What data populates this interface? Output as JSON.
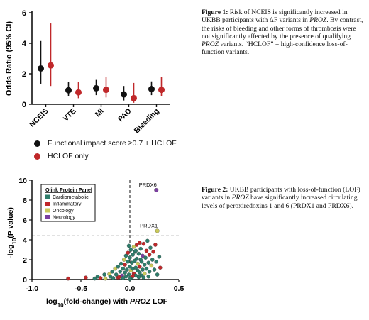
{
  "figure1": {
    "chart_data": {
      "type": "scatter",
      "subtype": "odds-ratio forest plot",
      "ylabel": "Odds Ratio (95% CI)",
      "ylim": [
        0,
        6
      ],
      "yticks": [
        0,
        2,
        4,
        6
      ],
      "reference_line": 1,
      "categories": [
        "NCEIS",
        "VTE",
        "MI",
        "PAD",
        "Bleeding"
      ],
      "series": [
        {
          "name": "Functional impact score ≥0.7 + HCLOF",
          "color": "#111111",
          "or": [
            2.35,
            0.92,
            1.05,
            0.65,
            1.0
          ],
          "ci_low": [
            1.35,
            0.55,
            0.6,
            0.25,
            0.6
          ],
          "ci_high": [
            4.15,
            1.45,
            1.6,
            1.2,
            1.5
          ]
        },
        {
          "name": "HCLOF only",
          "color": "#c0282a",
          "or": [
            2.55,
            0.78,
            0.95,
            0.4,
            0.95
          ],
          "ci_low": [
            1.2,
            0.4,
            0.45,
            0.1,
            0.55
          ],
          "ci_high": [
            5.3,
            1.45,
            1.8,
            1.4,
            1.8
          ]
        }
      ]
    },
    "legend": [
      {
        "label": "Functional impact score ≥0.7 + HCLOF",
        "color": "#111111"
      },
      {
        "label": "HCLOF only",
        "color": "#c0282a"
      }
    ]
  },
  "figure2": {
    "chart_data": {
      "type": "scatter",
      "subtype": "volcano",
      "xlabel": "log10(fold-change) with PROZ LOF",
      "ylabel": "-log10(P value)",
      "xlim": [
        -1.0,
        0.5
      ],
      "ylim": [
        0,
        10
      ],
      "xticks": [
        "-1.0",
        "-0.5",
        "0.0",
        "0.5"
      ],
      "yticks": [
        "0",
        "2",
        "4",
        "6",
        "8",
        "10"
      ],
      "threshold_y": 4.4,
      "threshold_x": 0,
      "legend_title": "Olink Protein Panel",
      "series": [
        {
          "name": "Cardiometabolic",
          "color": "#2e7d6b"
        },
        {
          "name": "Inflammatory",
          "color": "#c0282a"
        },
        {
          "name": "Oncology",
          "color": "#c9c95a"
        },
        {
          "name": "Neurology",
          "color": "#7b3fa0"
        }
      ],
      "labeled_points": [
        {
          "label": "PRDX6",
          "x": 0.27,
          "y": 9.0,
          "panel": "Neurology"
        },
        {
          "label": "PRDX1",
          "x": 0.28,
          "y": 4.9,
          "panel": "Oncology"
        }
      ],
      "points": [
        [
          -0.63,
          0.1,
          1
        ],
        [
          -0.45,
          0.2,
          1
        ],
        [
          -0.36,
          0.1,
          0
        ],
        [
          -0.33,
          0.3,
          0
        ],
        [
          -0.3,
          0.15,
          1
        ],
        [
          -0.26,
          0.5,
          0
        ],
        [
          -0.25,
          0.1,
          2
        ],
        [
          -0.21,
          0.55,
          2
        ],
        [
          -0.2,
          0.3,
          0
        ],
        [
          -0.18,
          0.8,
          0
        ],
        [
          -0.17,
          0.15,
          0
        ],
        [
          -0.15,
          1.1,
          2
        ],
        [
          -0.14,
          0.5,
          0
        ],
        [
          -0.12,
          1.3,
          0
        ],
        [
          -0.12,
          0.2,
          1
        ],
        [
          -0.1,
          0.8,
          0
        ],
        [
          -0.09,
          1.6,
          0
        ],
        [
          -0.08,
          0.4,
          3
        ],
        [
          -0.07,
          1.1,
          0
        ],
        [
          -0.06,
          2.0,
          2
        ],
        [
          -0.05,
          0.7,
          0
        ],
        [
          -0.05,
          1.5,
          1
        ],
        [
          -0.04,
          2.4,
          0
        ],
        [
          -0.04,
          0.3,
          0
        ],
        [
          -0.03,
          1.0,
          0
        ],
        [
          -0.02,
          1.8,
          0
        ],
        [
          -0.02,
          2.7,
          1
        ],
        [
          -0.01,
          0.5,
          0
        ],
        [
          0.0,
          1.3,
          0
        ],
        [
          0.0,
          2.2,
          0
        ],
        [
          0.01,
          0.9,
          2
        ],
        [
          0.01,
          3.0,
          0
        ],
        [
          0.02,
          1.7,
          0
        ],
        [
          0.02,
          0.2,
          0
        ],
        [
          0.03,
          2.5,
          0
        ],
        [
          0.03,
          1.1,
          0
        ],
        [
          0.04,
          3.3,
          2
        ],
        [
          0.04,
          0.6,
          1
        ],
        [
          0.05,
          1.9,
          0
        ],
        [
          0.05,
          2.8,
          0
        ],
        [
          0.06,
          1.2,
          0
        ],
        [
          0.06,
          0.4,
          0
        ],
        [
          0.07,
          2.1,
          0
        ],
        [
          0.07,
          3.5,
          1
        ],
        [
          0.08,
          0.9,
          0
        ],
        [
          0.08,
          1.6,
          2
        ],
        [
          0.09,
          2.6,
          0
        ],
        [
          0.1,
          0.7,
          0
        ],
        [
          0.1,
          1.3,
          1
        ],
        [
          0.11,
          3.1,
          0
        ],
        [
          0.11,
          2.0,
          0
        ],
        [
          0.12,
          0.4,
          0
        ],
        [
          0.12,
          1.8,
          0
        ],
        [
          0.13,
          2.4,
          3
        ],
        [
          0.13,
          1.0,
          0
        ],
        [
          0.14,
          3.6,
          1
        ],
        [
          0.15,
          1.5,
          0
        ],
        [
          0.15,
          0.6,
          2
        ],
        [
          0.16,
          2.2,
          0
        ],
        [
          0.17,
          2.9,
          1
        ],
        [
          0.17,
          1.1,
          0
        ],
        [
          0.18,
          3.9,
          0
        ],
        [
          0.19,
          1.7,
          0
        ],
        [
          0.2,
          2.5,
          1
        ],
        [
          0.2,
          0.8,
          0
        ],
        [
          0.21,
          3.2,
          0
        ],
        [
          0.22,
          1.4,
          2
        ],
        [
          0.23,
          2.0,
          0
        ],
        [
          0.24,
          2.8,
          1
        ],
        [
          0.25,
          1.0,
          0
        ],
        [
          0.26,
          3.5,
          1
        ],
        [
          0.27,
          1.8,
          0
        ],
        [
          0.28,
          0.5,
          0
        ],
        [
          0.3,
          2.3,
          0
        ],
        [
          0.31,
          1.2,
          1
        ],
        [
          -0.07,
          0.15,
          0
        ],
        [
          0.0,
          0.05,
          0
        ],
        [
          -0.11,
          0.25,
          1
        ],
        [
          0.03,
          0.35,
          1
        ],
        [
          0.09,
          0.25,
          0
        ],
        [
          0.14,
          0.2,
          0
        ],
        [
          0.19,
          0.3,
          0
        ],
        [
          0.06,
          2.9,
          0
        ],
        [
          -0.01,
          3.4,
          0
        ],
        [
          0.1,
          3.7,
          1
        ]
      ]
    }
  },
  "captions": {
    "fig1_label": "Figure 1:",
    "fig1_a": " Risk of NCEIS is significantly increased in UKBB participants with ",
    "fig1_delta": "ΔF",
    "fig1_b": " variants in ",
    "fig1_proz1": "PROZ",
    "fig1_c": ". By contrast, the risks of bleeding and other forms of thrombosis were not significantly affected by the presence of qualifying ",
    "fig1_proz2": "PROZ",
    "fig1_d": " variants. “HCLOF” = high-confidence loss-of-function variants.",
    "fig2_label": "Figure 2:",
    "fig2_a": " UKBB participants with loss-of-function (LOF) variants in ",
    "fig2_proz": "PROZ",
    "fig2_b": " have significantly increased circulating levels of peroxiredoxins 1 and 6 (PRDX1 and PRDX6)."
  }
}
